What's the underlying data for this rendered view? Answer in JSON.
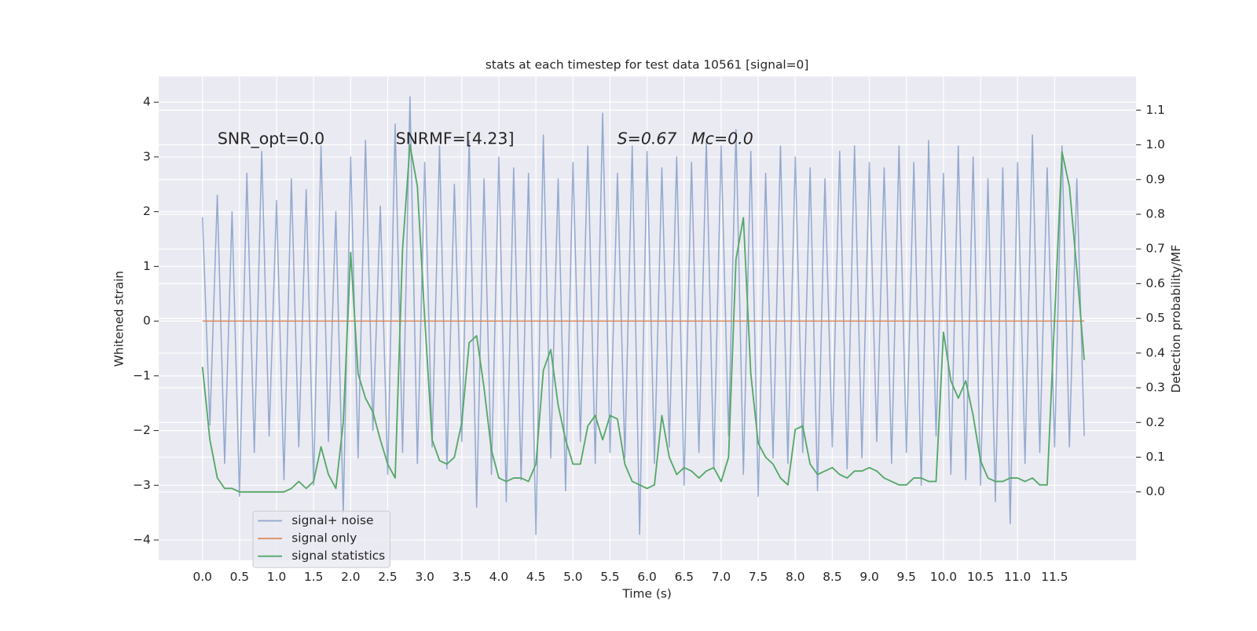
{
  "chart_data": {
    "type": "line",
    "title": "stats at each timestep for test data 10561 [signal=0]",
    "x_label": "Time (s)",
    "y_label": "Whitened strain",
    "y2_label": "Detection probability/MF",
    "annotations": [
      "SNR_opt=0.0",
      "SNRMF=[4.23]",
      "S=0.67",
      "Mc=0.0"
    ],
    "grid": true,
    "legend": "lower left",
    "xlim": [
      -0.59,
      12.6
    ],
    "ylim": [
      -4.37,
      4.47
    ],
    "y2lim": [
      -0.197,
      1.197
    ],
    "xticks": [
      {
        "value": 0,
        "label": "0.0"
      },
      0.5,
      {
        "value": 1,
        "label": "1.0"
      },
      1.5,
      {
        "value": 2,
        "label": "2.0"
      },
      2.5,
      {
        "value": 3,
        "label": "3.0"
      },
      3.5,
      {
        "value": 4,
        "label": "4.0"
      },
      4.5,
      {
        "value": 5,
        "label": "5.0"
      },
      5.5,
      {
        "value": 6,
        "label": "6.0"
      },
      6.5,
      {
        "value": 7,
        "label": "7.0"
      },
      7.5,
      {
        "value": 8,
        "label": "8.0"
      },
      8.5,
      {
        "value": 9,
        "label": "9.0"
      },
      9.5,
      {
        "value": 10,
        "label": "10.0"
      },
      10.5,
      {
        "value": 11,
        "label": "11.0"
      },
      11.5
    ],
    "yticks": [
      {
        "value": -4,
        "label": "−4"
      },
      {
        "value": -3,
        "label": "−3"
      },
      {
        "value": -2,
        "label": "−2"
      },
      {
        "value": -1,
        "label": "−1"
      },
      0,
      1,
      2,
      3,
      4
    ],
    "y2ticks": [
      {
        "value": 0,
        "label": "0.0"
      },
      0.1,
      0.2,
      0.3,
      0.4,
      0.5,
      0.6,
      0.7,
      0.8,
      0.9,
      {
        "value": 1,
        "label": "1.0"
      },
      1.1
    ],
    "x": [
      0.0,
      0.1,
      0.2,
      0.3,
      0.4,
      0.5,
      0.6,
      0.7,
      0.8,
      0.9,
      1.0,
      1.1,
      1.2,
      1.3,
      1.4,
      1.5,
      1.6,
      1.7,
      1.8,
      1.9,
      2.0,
      2.1,
      2.2,
      2.3,
      2.4,
      2.5,
      2.6,
      2.7,
      2.8,
      2.9,
      3.0,
      3.1,
      3.2,
      3.3,
      3.4,
      3.5,
      3.6,
      3.7,
      3.8,
      3.9,
      4.0,
      4.1,
      4.2,
      4.3,
      4.4,
      4.5,
      4.6,
      4.7,
      4.8,
      4.9,
      5.0,
      5.1,
      5.2,
      5.3,
      5.4,
      5.5,
      5.6,
      5.7,
      5.8,
      5.9,
      6.0,
      6.1,
      6.2,
      6.3,
      6.4,
      6.5,
      6.6,
      6.7,
      6.8,
      6.9,
      7.0,
      7.1,
      7.2,
      7.3,
      7.4,
      7.5,
      7.6,
      7.7,
      7.8,
      7.9,
      8.0,
      8.1,
      8.2,
      8.3,
      8.4,
      8.5,
      8.6,
      8.7,
      8.8,
      8.9,
      9.0,
      9.1,
      9.2,
      9.3,
      9.4,
      9.5,
      9.6,
      9.7,
      9.8,
      9.9,
      10.0,
      10.1,
      10.2,
      10.3,
      10.4,
      10.5,
      10.6,
      10.7,
      10.8,
      10.9,
      11.0,
      11.1,
      11.2,
      11.3,
      11.4,
      11.5,
      11.6,
      11.7,
      11.8,
      11.9
    ],
    "series": [
      {
        "name": "signal+ noise",
        "color": "#4c72b0",
        "values": [
          1.9,
          -1.9,
          2.3,
          -2.6,
          2.0,
          -3.2,
          2.7,
          -2.4,
          3.1,
          -2.1,
          2.2,
          -2.9,
          2.6,
          -2.3,
          2.4,
          -3.0,
          3.2,
          -2.2,
          2.0,
          -3.5,
          3.0,
          -2.5,
          3.3,
          -2.0,
          2.1,
          -2.8,
          3.6,
          -2.4,
          4.1,
          -2.6,
          2.9,
          -2.3,
          3.2,
          -2.7,
          2.5,
          -2.2,
          3.3,
          -3.4,
          2.6,
          -2.8,
          3.0,
          -3.3,
          2.8,
          -2.9,
          2.7,
          -3.9,
          3.4,
          -2.5,
          2.6,
          -3.1,
          2.9,
          -2.2,
          3.2,
          -2.6,
          3.8,
          -2.4,
          2.7,
          -2.5,
          3.2,
          -3.9,
          3.1,
          -2.6,
          2.8,
          -2.3,
          3.0,
          -3.0,
          2.9,
          -2.4,
          3.3,
          -2.7,
          3.2,
          -2.1,
          3.5,
          -2.8,
          3.1,
          -3.2,
          2.7,
          -2.5,
          3.2,
          -2.6,
          3.0,
          -2.4,
          2.8,
          -3.1,
          2.6,
          -2.3,
          3.1,
          -2.7,
          3.2,
          -2.5,
          2.9,
          -2.2,
          2.8,
          -2.6,
          3.2,
          -2.4,
          2.9,
          -3.0,
          3.3,
          -2.1,
          2.7,
          -2.8,
          3.2,
          -2.9,
          3.0,
          -3.0,
          2.6,
          -3.3,
          2.8,
          -3.7,
          2.9,
          -2.6,
          3.4,
          -2.4,
          2.8,
          -2.3,
          3.2,
          -2.3,
          2.6,
          -2.1
        ]
      },
      {
        "name": "signal only",
        "color": "#dd8452",
        "values": [
          0,
          0,
          0,
          0,
          0,
          0,
          0,
          0,
          0,
          0,
          0,
          0,
          0,
          0,
          0,
          0,
          0,
          0,
          0,
          0,
          0,
          0,
          0,
          0,
          0,
          0,
          0,
          0,
          0,
          0,
          0,
          0,
          0,
          0,
          0,
          0,
          0,
          0,
          0,
          0,
          0,
          0,
          0,
          0,
          0,
          0,
          0,
          0,
          0,
          0,
          0,
          0,
          0,
          0,
          0,
          0,
          0,
          0,
          0,
          0,
          0,
          0,
          0,
          0,
          0,
          0,
          0,
          0,
          0,
          0,
          0,
          0,
          0,
          0,
          0,
          0,
          0,
          0,
          0,
          0,
          0,
          0,
          0,
          0,
          0,
          0,
          0,
          0,
          0,
          0,
          0,
          0,
          0,
          0,
          0,
          0,
          0,
          0,
          0,
          0,
          0,
          0,
          0,
          0,
          0,
          0,
          0,
          0,
          0,
          0,
          0,
          0,
          0,
          0,
          0,
          0,
          0,
          0,
          0,
          0
        ]
      },
      {
        "name": "signal statistics",
        "color": "#55a868",
        "axis": "y2",
        "values": [
          0.36,
          0.15,
          0.04,
          0.01,
          0.01,
          0.0,
          0.0,
          0.0,
          0.0,
          0.0,
          0.0,
          0.0,
          0.01,
          0.03,
          0.01,
          0.03,
          0.13,
          0.05,
          0.01,
          0.2,
          0.69,
          0.34,
          0.27,
          0.23,
          0.15,
          0.08,
          0.04,
          0.7,
          1.0,
          0.88,
          0.5,
          0.15,
          0.09,
          0.08,
          0.1,
          0.2,
          0.43,
          0.45,
          0.3,
          0.12,
          0.04,
          0.03,
          0.04,
          0.04,
          0.03,
          0.08,
          0.35,
          0.41,
          0.25,
          0.15,
          0.08,
          0.08,
          0.19,
          0.22,
          0.15,
          0.22,
          0.21,
          0.08,
          0.03,
          0.02,
          0.01,
          0.02,
          0.22,
          0.1,
          0.05,
          0.07,
          0.06,
          0.04,
          0.06,
          0.07,
          0.03,
          0.1,
          0.67,
          0.79,
          0.34,
          0.14,
          0.1,
          0.08,
          0.04,
          0.02,
          0.18,
          0.19,
          0.08,
          0.05,
          0.06,
          0.07,
          0.05,
          0.04,
          0.06,
          0.06,
          0.07,
          0.06,
          0.04,
          0.03,
          0.02,
          0.02,
          0.04,
          0.04,
          0.03,
          0.03,
          0.46,
          0.32,
          0.27,
          0.32,
          0.22,
          0.09,
          0.04,
          0.03,
          0.03,
          0.04,
          0.04,
          0.03,
          0.04,
          0.02,
          0.02,
          0.5,
          0.98,
          0.88,
          0.64,
          0.38
        ]
      }
    ]
  }
}
